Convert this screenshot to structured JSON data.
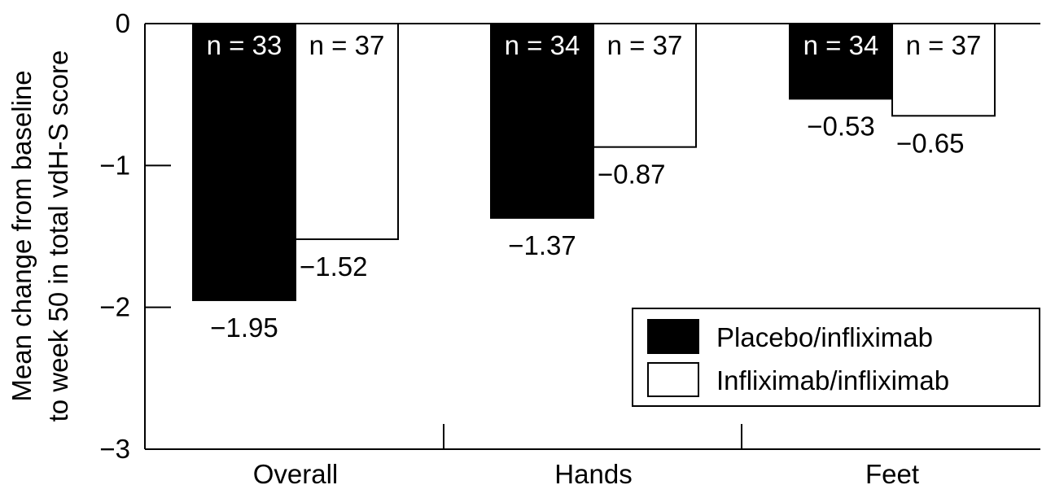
{
  "chart_data": {
    "type": "bar",
    "ylabel_lines": [
      "Mean change from baseline",
      "to week 50 in total vdH-S score"
    ],
    "ylim": [
      -3,
      0
    ],
    "yticks": [
      0,
      -1,
      -2,
      -3
    ],
    "ytick_labels": [
      "0",
      "−1",
      "−2",
      "−3"
    ],
    "categories": [
      "Overall",
      "Hands",
      "Feet"
    ],
    "series": [
      {
        "name": "Placebo/infliximab",
        "color": "#000000",
        "values": [
          -1.95,
          -1.37,
          -0.53
        ],
        "value_labels": [
          "−1.95",
          "−1.37",
          "−0.53"
        ],
        "n_labels": [
          "n = 33",
          "n = 34",
          "n = 34"
        ]
      },
      {
        "name": "Infliximab/infliximab",
        "color": "#ffffff",
        "values": [
          -1.52,
          -0.87,
          -0.65
        ],
        "value_labels": [
          "−1.52",
          "−0.87",
          "−0.65"
        ],
        "n_labels": [
          "n = 37",
          "n = 37",
          "n = 37"
        ]
      }
    ],
    "grid": false,
    "legend_position": "bottom-right"
  }
}
